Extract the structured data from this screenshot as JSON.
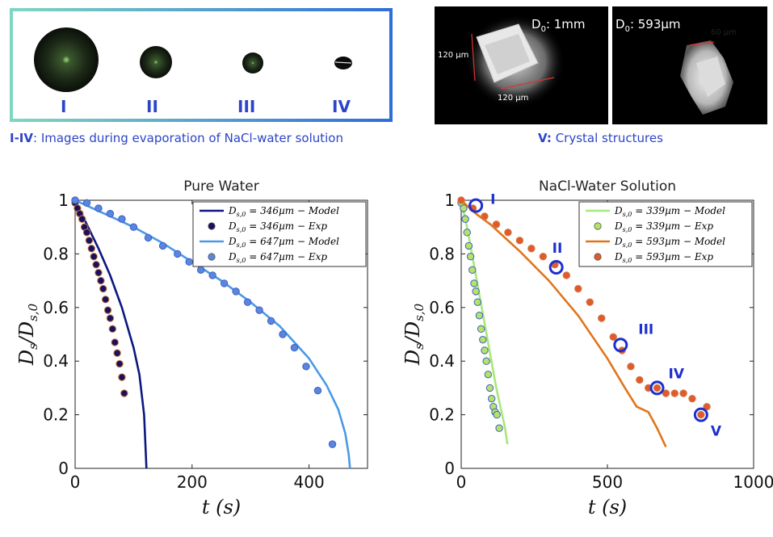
{
  "droplet_panel": {
    "labels": [
      "I",
      "II",
      "III",
      "IV"
    ],
    "caption_bold": "I-IV",
    "caption_rest": ": Images during evaporation of NaCl-water solution"
  },
  "crystal_panel": {
    "photo1_label": "D",
    "photo1_sub": "0",
    "photo1_value": ": 1mm",
    "photo1_dims": [
      "120 µm",
      "120 µm"
    ],
    "photo2_label": "D",
    "photo2_sub": "0",
    "photo2_value": ": 593µm",
    "photo2_dim": "60 µm",
    "caption_bold": "V:",
    "caption_rest": " Crystal structures"
  },
  "chart_data": [
    {
      "type": "line",
      "title": "Pure Water",
      "xlabel": "t (s)",
      "ylabel": "Ds/Ds,0",
      "xlim": [
        0,
        500
      ],
      "ylim": [
        0,
        1
      ],
      "xticks": [
        0,
        200,
        400
      ],
      "yticks": [
        0,
        0.2,
        0.4,
        0.6,
        0.8,
        1
      ],
      "legend_position": "top-right",
      "colors": {
        "dark": "#0d1780",
        "light": "#4a9ae6",
        "light_marker": "#5b86e0"
      },
      "series": [
        {
          "name": "Ds,0 = 346µm − Model",
          "kind": "line",
          "color": "#0d1780",
          "x": [
            0,
            20,
            40,
            60,
            80,
            100,
            110,
            118,
            121,
            122
          ],
          "y": [
            1.0,
            0.91,
            0.82,
            0.72,
            0.6,
            0.45,
            0.35,
            0.2,
            0.05,
            0.0
          ]
        },
        {
          "name": "Ds,0 = 346µm − Exp",
          "kind": "scatter",
          "color": "#1a1060",
          "x": [
            0,
            4,
            8,
            12,
            16,
            20,
            24,
            28,
            32,
            36,
            40,
            44,
            48,
            52,
            56,
            60,
            64,
            68,
            72,
            76,
            80,
            84
          ],
          "y": [
            0.99,
            0.97,
            0.95,
            0.93,
            0.9,
            0.88,
            0.85,
            0.82,
            0.79,
            0.76,
            0.73,
            0.7,
            0.67,
            0.63,
            0.59,
            0.56,
            0.52,
            0.47,
            0.43,
            0.39,
            0.34,
            0.28
          ]
        },
        {
          "name": "Ds,0 = 647µm − Model",
          "kind": "line",
          "color": "#4a9ae6",
          "x": [
            0,
            50,
            100,
            150,
            200,
            250,
            300,
            350,
            400,
            430,
            450,
            462,
            468,
            470
          ],
          "y": [
            1.0,
            0.95,
            0.9,
            0.84,
            0.77,
            0.7,
            0.62,
            0.53,
            0.41,
            0.31,
            0.22,
            0.13,
            0.05,
            0.0
          ]
        },
        {
          "name": "Ds,0 = 647µm − Exp",
          "kind": "scatter",
          "color": "#5b86e0",
          "x": [
            0,
            20,
            40,
            60,
            80,
            100,
            125,
            150,
            175,
            195,
            215,
            235,
            255,
            275,
            295,
            315,
            335,
            355,
            375,
            395,
            415,
            440
          ],
          "y": [
            1.0,
            0.99,
            0.97,
            0.95,
            0.93,
            0.9,
            0.86,
            0.83,
            0.8,
            0.77,
            0.74,
            0.72,
            0.69,
            0.66,
            0.62,
            0.59,
            0.55,
            0.5,
            0.45,
            0.38,
            0.29,
            0.09
          ]
        }
      ]
    },
    {
      "type": "line",
      "title": "NaCl-Water Solution",
      "xlabel": "t (s)",
      "ylabel": "Ds/Ds,0",
      "xlim": [
        0,
        1000
      ],
      "ylim": [
        0,
        1
      ],
      "xticks": [
        0,
        500,
        1000
      ],
      "yticks": [
        0,
        0.2,
        0.4,
        0.6,
        0.8,
        1
      ],
      "legend_position": "top-right",
      "colors": {
        "green": "#a6e87a",
        "green_marker": "#b5e36a",
        "orange": "#e0761c",
        "orange_marker": "#e05a2a",
        "highlight": "#1d2fd0"
      },
      "series": [
        {
          "name": "Ds,0 = 339µm − Model",
          "kind": "line",
          "color": "#a6e87a",
          "x": [
            0,
            20,
            40,
            60,
            80,
            100,
            120,
            140,
            150,
            158
          ],
          "y": [
            1.0,
            0.9,
            0.78,
            0.66,
            0.54,
            0.42,
            0.3,
            0.2,
            0.15,
            0.09
          ]
        },
        {
          "name": "Ds,0 = 339µm − Exp",
          "kind": "scatter",
          "color": "#b5e36a",
          "x": [
            0,
            8,
            14,
            20,
            26,
            32,
            38,
            44,
            50,
            56,
            62,
            68,
            74,
            80,
            86,
            92,
            98,
            104,
            110,
            116,
            122,
            130
          ],
          "y": [
            0.99,
            0.97,
            0.93,
            0.88,
            0.83,
            0.79,
            0.74,
            0.69,
            0.66,
            0.62,
            0.57,
            0.52,
            0.48,
            0.44,
            0.4,
            0.35,
            0.3,
            0.26,
            0.23,
            0.21,
            0.2,
            0.15
          ]
        },
        {
          "name": "Ds,0 = 593µm − Model",
          "kind": "line",
          "color": "#e0761c",
          "x": [
            0,
            50,
            100,
            200,
            300,
            400,
            500,
            560,
            600,
            640,
            670,
            700
          ],
          "y": [
            1.0,
            0.95,
            0.91,
            0.81,
            0.7,
            0.57,
            0.41,
            0.3,
            0.23,
            0.21,
            0.15,
            0.08
          ]
        },
        {
          "name": "Ds,0 = 593µm − Exp",
          "kind": "scatter",
          "color": "#e05a2a",
          "x": [
            0,
            40,
            80,
            120,
            160,
            200,
            240,
            280,
            320,
            360,
            400,
            440,
            480,
            520,
            550,
            580,
            610,
            640,
            670,
            700,
            730,
            760,
            790,
            820,
            840
          ],
          "y": [
            1.0,
            0.97,
            0.94,
            0.91,
            0.88,
            0.85,
            0.82,
            0.79,
            0.76,
            0.72,
            0.67,
            0.62,
            0.56,
            0.49,
            0.44,
            0.38,
            0.33,
            0.3,
            0.3,
            0.28,
            0.28,
            0.28,
            0.26,
            0.2,
            0.23
          ]
        }
      ],
      "annotations": [
        {
          "label": "I",
          "x": 50,
          "y": 0.98
        },
        {
          "label": "II",
          "x": 325,
          "y": 0.75
        },
        {
          "label": "III",
          "x": 545,
          "y": 0.46
        },
        {
          "label": "IV",
          "x": 670,
          "y": 0.3
        },
        {
          "label": "V",
          "x": 820,
          "y": 0.2
        }
      ]
    }
  ]
}
